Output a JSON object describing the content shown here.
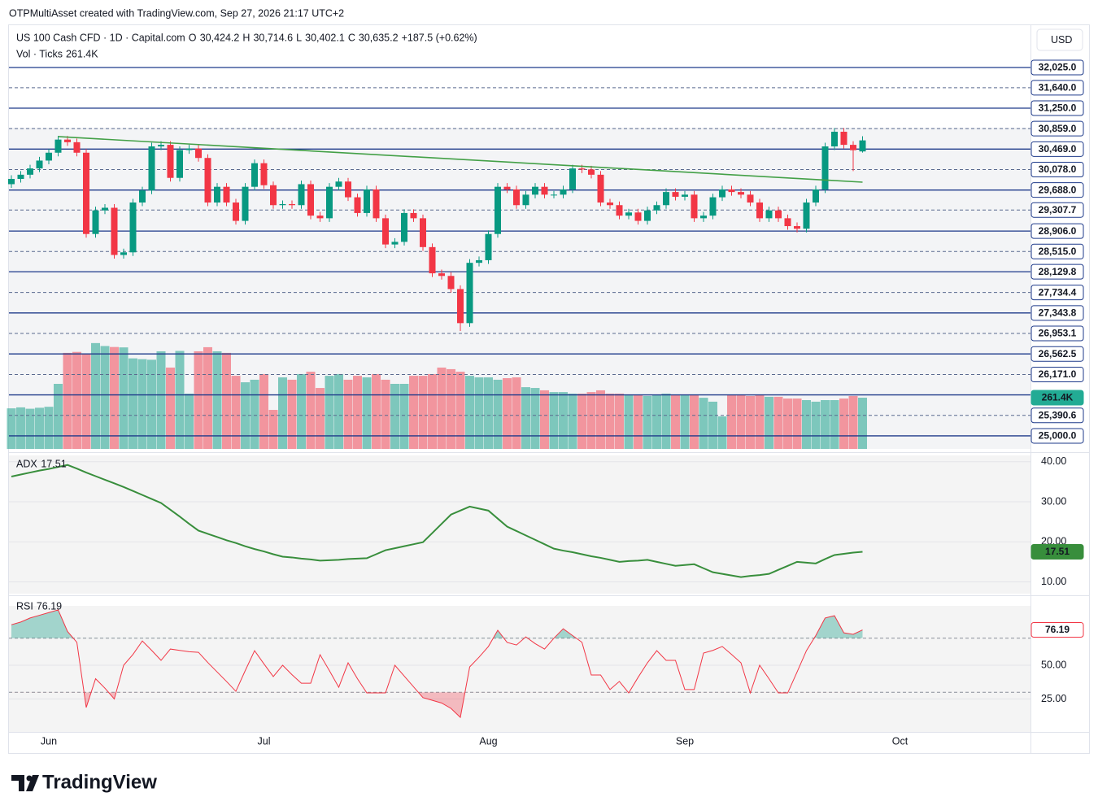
{
  "header": {
    "text": "OTPMultiAsset created with TradingView.com, Sep 27, 2026 21:17 UTC+2"
  },
  "footer": {
    "logo": "TradingView"
  },
  "chart_data": [
    {
      "type": "candlestick",
      "title": "US 100 Cash CFD · 1D · Capital.com",
      "currency": "USD",
      "ohlc_legend": [
        {
          "key": "O",
          "value": "30,424.2"
        },
        {
          "key": "H",
          "value": "30,714.6"
        },
        {
          "key": "L",
          "value": "30,402.1"
        },
        {
          "key": "C",
          "value": "30,635.2"
        }
      ],
      "change": "+187.5 (+0.62%)",
      "up_color": "#089981",
      "down_color": "#f23645",
      "categories": [
        null,
        null,
        null,
        null,
        "Jun",
        null,
        null,
        null,
        null,
        null,
        null,
        null,
        null,
        null,
        null,
        null,
        null,
        null,
        null,
        null,
        null,
        null,
        null,
        null,
        null,
        null,
        null,
        "Jul",
        null,
        null,
        null,
        null,
        null,
        null,
        null,
        null,
        null,
        null,
        null,
        null,
        null,
        null,
        null,
        null,
        null,
        null,
        null,
        null,
        null,
        null,
        null,
        "Aug",
        null,
        null,
        null,
        null,
        null,
        null,
        null,
        null,
        null,
        null,
        null,
        null,
        null,
        null,
        null,
        null,
        null,
        null,
        null,
        null,
        "Sep",
        null,
        null,
        null,
        null,
        null,
        null,
        null,
        null,
        null,
        null,
        null,
        null,
        null,
        null,
        null,
        null,
        null,
        null,
        null,
        null,
        null,
        null,
        "Oct"
      ],
      "ohlc": [
        [
          29800,
          29970,
          29730,
          29900
        ],
        [
          29900,
          30050,
          29830,
          29980
        ],
        [
          29980,
          30170,
          29910,
          30100
        ],
        [
          30100,
          30320,
          30030,
          30250
        ],
        [
          30250,
          30470,
          30180,
          30400
        ],
        [
          30400,
          30720,
          30330,
          30650
        ],
        [
          30650,
          30720,
          30530,
          30600
        ],
        [
          30600,
          30670,
          30330,
          30400
        ],
        [
          30400,
          30470,
          28780,
          28850
        ],
        [
          28850,
          29370,
          28780,
          29300
        ],
        [
          29300,
          29420,
          29230,
          29350
        ],
        [
          29350,
          29420,
          28380,
          28450
        ],
        [
          28450,
          28570,
          28380,
          28500
        ],
        [
          28500,
          29520,
          28430,
          29450
        ],
        [
          29450,
          29750,
          29380,
          29680
        ],
        [
          29680,
          30590,
          29610,
          30520
        ],
        [
          30520,
          30620,
          30450,
          30550
        ],
        [
          30550,
          30620,
          29850,
          29920
        ],
        [
          29920,
          30520,
          29850,
          30450
        ],
        [
          30450,
          30550,
          30380,
          30480
        ],
        [
          30480,
          30550,
          30230,
          30300
        ],
        [
          30300,
          30370,
          29380,
          29450
        ],
        [
          29450,
          29820,
          29380,
          29750
        ],
        [
          29750,
          29820,
          29380,
          29450
        ],
        [
          29450,
          29520,
          29030,
          29100
        ],
        [
          29100,
          29820,
          29030,
          29750
        ],
        [
          29750,
          30270,
          29680,
          30200
        ],
        [
          30200,
          30270,
          29710,
          29780
        ],
        [
          29780,
          29850,
          29330,
          29400
        ],
        [
          29400,
          29490,
          29330,
          29420
        ],
        [
          29420,
          29490,
          29330,
          29400
        ],
        [
          29400,
          29870,
          29330,
          29800
        ],
        [
          29800,
          29870,
          29130,
          29200
        ],
        [
          29200,
          29270,
          29080,
          29150
        ],
        [
          29150,
          29820,
          29080,
          29750
        ],
        [
          29750,
          29920,
          29680,
          29850
        ],
        [
          29850,
          29920,
          29480,
          29550
        ],
        [
          29550,
          29620,
          29180,
          29250
        ],
        [
          29250,
          29770,
          29180,
          29700
        ],
        [
          29700,
          29770,
          29080,
          29150
        ],
        [
          29150,
          29220,
          28580,
          28650
        ],
        [
          28650,
          28770,
          28580,
          28700
        ],
        [
          28700,
          29320,
          28630,
          29250
        ],
        [
          29250,
          29320,
          29080,
          29150
        ],
        [
          29150,
          29220,
          28530,
          28600
        ],
        [
          28600,
          28670,
          28030,
          28100
        ],
        [
          28100,
          28170,
          27980,
          28050
        ],
        [
          28050,
          28120,
          27730,
          27800
        ],
        [
          27800,
          27870,
          27000,
          27150
        ],
        [
          27150,
          28370,
          27080,
          28300
        ],
        [
          28300,
          28420,
          28230,
          28350
        ],
        [
          28350,
          28920,
          28280,
          28850
        ],
        [
          28850,
          29820,
          28780,
          29750
        ],
        [
          29750,
          29820,
          29630,
          29700
        ],
        [
          29700,
          29770,
          29330,
          29400
        ],
        [
          29400,
          29670,
          29330,
          29600
        ],
        [
          29600,
          29820,
          29530,
          29750
        ],
        [
          29750,
          29820,
          29530,
          29600
        ],
        [
          29600,
          29670,
          29530,
          29600
        ],
        [
          29600,
          29770,
          29530,
          29700
        ],
        [
          29700,
          30170,
          29630,
          30100
        ],
        [
          30100,
          30170,
          30010,
          30080
        ],
        [
          30080,
          30150,
          29910,
          29980
        ],
        [
          29980,
          30050,
          29380,
          29450
        ],
        [
          29450,
          29520,
          29330,
          29400
        ],
        [
          29400,
          29470,
          29130,
          29200
        ],
        [
          29200,
          29330,
          29130,
          29260
        ],
        [
          29260,
          29330,
          29030,
          29100
        ],
        [
          29100,
          29370,
          29030,
          29300
        ],
        [
          29300,
          29470,
          29230,
          29400
        ],
        [
          29400,
          29720,
          29330,
          29650
        ],
        [
          29650,
          29720,
          29490,
          29560
        ],
        [
          29560,
          29670,
          29490,
          29600
        ],
        [
          29600,
          29670,
          29080,
          29150
        ],
        [
          29150,
          29270,
          29080,
          29200
        ],
        [
          29200,
          29620,
          29130,
          29550
        ],
        [
          29550,
          29770,
          29480,
          29700
        ],
        [
          29700,
          29770,
          29580,
          29650
        ],
        [
          29650,
          29720,
          29530,
          29600
        ],
        [
          29600,
          29670,
          29380,
          29450
        ],
        [
          29450,
          29520,
          29080,
          29150
        ],
        [
          29150,
          29370,
          29080,
          29300
        ],
        [
          29300,
          29370,
          29080,
          29150
        ],
        [
          29150,
          29220,
          28930,
          29000
        ],
        [
          29000,
          29070,
          28880,
          28950
        ],
        [
          28950,
          29520,
          28880,
          29450
        ],
        [
          29450,
          29770,
          29380,
          29700
        ],
        [
          29700,
          30590,
          29630,
          30520
        ],
        [
          30520,
          30870,
          30450,
          30800
        ],
        [
          30800,
          30870,
          30480,
          30550
        ],
        [
          30550,
          30620,
          30050,
          30447.7
        ],
        [
          30424.2,
          30714.6,
          30402.1,
          30635.2
        ],
        null,
        null,
        null,
        null
      ],
      "ylim": [
        24751,
        32847
      ],
      "yticks": [
        {
          "value": 32025,
          "label": "32,025.0"
        },
        {
          "value": 31640,
          "label": "31,640.0"
        },
        {
          "value": 31250,
          "label": "31,250.0"
        },
        {
          "value": 30859,
          "label": "30,859.0"
        },
        {
          "value": 30469,
          "label": "30,469.0"
        },
        {
          "value": 30078,
          "label": "30,078.0"
        },
        {
          "value": 29688,
          "label": "29,688.0"
        },
        {
          "value": 29307.7,
          "label": "29,307.7"
        },
        {
          "value": 28906,
          "label": "28,906.0"
        },
        {
          "value": 28515,
          "label": "28,515.0"
        },
        {
          "value": 28129.8,
          "label": "28,129.8"
        },
        {
          "value": 27734.4,
          "label": "27,734.4"
        },
        {
          "value": 27343.8,
          "label": "27,343.8"
        },
        {
          "value": 26953.1,
          "label": "26,953.1"
        },
        {
          "value": 26562.5,
          "label": "26,562.5"
        },
        {
          "value": 26171,
          "label": "26,171.0"
        },
        {
          "value": 25781.3,
          "label": null
        },
        {
          "value": 25390.6,
          "label": "25,390.6"
        },
        {
          "value": 25000,
          "label": "25,000.0"
        }
      ],
      "tick_styles": [
        "solid",
        "dashed",
        "solid",
        "dashed",
        "solid",
        "dashed",
        "solid",
        "dashed",
        "solid",
        "dashed",
        "solid",
        "dashed",
        "solid",
        "dashed",
        "solid",
        "dashed",
        "solid",
        "dashed",
        "solid"
      ],
      "trendline": {
        "x": [
          5,
          91
        ],
        "y": [
          30707,
          29838
        ],
        "color": "#43a047"
      }
    },
    {
      "type": "bar",
      "title": "Vol · Ticks",
      "up_color": "rgba(8,153,129,0.5)",
      "down_color": "rgba(242,54,69,0.5)",
      "badge_color": "#22ab94",
      "values": [
        207000,
        212000,
        205000,
        210000,
        215000,
        332000,
        490000,
        495000,
        487000,
        540000,
        525000,
        520000,
        518000,
        462000,
        458000,
        455000,
        498000,
        415000,
        500000,
        282000,
        498000,
        519000,
        498000,
        490000,
        373000,
        340000,
        353000,
        382000,
        199000,
        365000,
        353000,
        382000,
        394000,
        311000,
        373000,
        382000,
        353000,
        373000,
        365000,
        382000,
        353000,
        332000,
        332000,
        373000,
        373000,
        382000,
        415000,
        407000,
        394000,
        373000,
        365000,
        365000,
        353000,
        361000,
        365000,
        315000,
        311000,
        299000,
        290000,
        290000,
        282000,
        282000,
        290000,
        299000,
        282000,
        282000,
        274000,
        274000,
        270000,
        274000,
        282000,
        278000,
        274000,
        274000,
        261000,
        241000,
        166000,
        274000,
        274000,
        270000,
        274000,
        266000,
        266000,
        257000,
        257000,
        249000,
        241000,
        249000,
        249000,
        257000,
        270000,
        261400,
        null,
        null,
        null,
        null
      ],
      "value_labels": [
        null,
        null,
        null,
        null,
        null,
        null,
        null,
        null,
        null,
        null,
        null,
        null,
        null,
        null,
        null,
        null,
        null,
        null,
        null,
        null,
        null,
        null,
        null,
        null,
        null,
        null,
        null,
        null,
        null,
        null,
        null,
        null,
        null,
        null,
        null,
        null,
        null,
        null,
        null,
        null,
        null,
        null,
        null,
        null,
        null,
        null,
        null,
        null,
        null,
        null,
        null,
        null,
        null,
        null,
        null,
        null,
        null,
        null,
        null,
        null,
        null,
        null,
        null,
        null,
        null,
        null,
        null,
        null,
        null,
        null,
        null,
        null,
        null,
        null,
        null,
        null,
        null,
        null,
        null,
        null,
        null,
        null,
        null,
        null,
        null,
        null,
        null,
        null,
        null,
        null,
        null,
        "261.4K",
        null,
        null,
        null,
        null
      ],
      "ylim": [
        0,
        2166000
      ]
    },
    {
      "type": "line",
      "title": "ADX",
      "color": "#388e3c",
      "badge_style": "filled",
      "values": [
        36.3,
        36.8,
        37.3,
        37.8,
        38.2,
        38.7,
        39.2,
        38.3,
        37.3,
        36.4,
        35.5,
        34.6,
        33.7,
        32.7,
        31.7,
        30.7,
        29.7,
        28,
        26.3,
        24.5,
        22.8,
        22,
        21.2,
        20.4,
        19.7,
        18.9,
        18.2,
        17.6,
        16.9,
        16.3,
        16.1,
        15.8,
        15.6,
        15.3,
        15.4,
        15.5,
        15.7,
        15.8,
        15.9,
        16.9,
        17.9,
        18.4,
        18.9,
        19.4,
        19.9,
        22.2,
        24.5,
        26.8,
        27.8,
        28.8,
        28.3,
        27.8,
        25.8,
        23.8,
        22.7,
        21.6,
        20.5,
        19.4,
        18.3,
        17.8,
        17.4,
        16.9,
        16.4,
        16,
        15.5,
        15,
        15.2,
        15.3,
        15.5,
        15,
        14.5,
        14,
        14.2,
        14.4,
        13.4,
        12.4,
        12,
        11.6,
        11.2,
        11.5,
        11.7,
        12,
        13,
        14,
        15,
        14.8,
        14.6,
        15.7,
        16.7,
        17,
        17.3,
        17.51,
        null,
        null,
        null,
        null
      ],
      "ylim": [
        7.05,
        41.58
      ],
      "yticks": [
        {
          "value": 10,
          "label": "10.00"
        },
        {
          "value": 20,
          "label": "20.00"
        },
        {
          "value": 30,
          "label": "30.00"
        },
        {
          "value": 40,
          "label": "40.00"
        }
      ]
    },
    {
      "type": "line",
      "title": "RSI",
      "color": "#f23645",
      "badge_style": "outline",
      "bands": [
        30,
        70
      ],
      "values": [
        80,
        82,
        85,
        87,
        89,
        91,
        75,
        67,
        18.7,
        40,
        33,
        25,
        50,
        58,
        68,
        61,
        53.6,
        62,
        61,
        60,
        59.6,
        52,
        45,
        38,
        30.7,
        46,
        60.8,
        51,
        41.6,
        50,
        43,
        36.7,
        36.7,
        57.8,
        46,
        33.7,
        51.8,
        40,
        29.5,
        29.5,
        29.5,
        50,
        42,
        34,
        26,
        24,
        22,
        18,
        11.4,
        48.8,
        56,
        63.9,
        75.9,
        66.9,
        65,
        71,
        66,
        62,
        70,
        77,
        72,
        67,
        42.8,
        42.8,
        32,
        38,
        29.5,
        41,
        51.8,
        60.8,
        53.6,
        53.6,
        32,
        32,
        59,
        61,
        63.9,
        58,
        51.8,
        29.5,
        50,
        40,
        29.5,
        29.5,
        45,
        60.8,
        72,
        85,
        86.7,
        74,
        72.9,
        76.19,
        null,
        null,
        null,
        null
      ],
      "ylim": [
        0,
        100
      ],
      "yticks": [
        {
          "value": 25,
          "label": "25.00"
        },
        {
          "value": 50,
          "label": "50.00"
        }
      ]
    }
  ]
}
